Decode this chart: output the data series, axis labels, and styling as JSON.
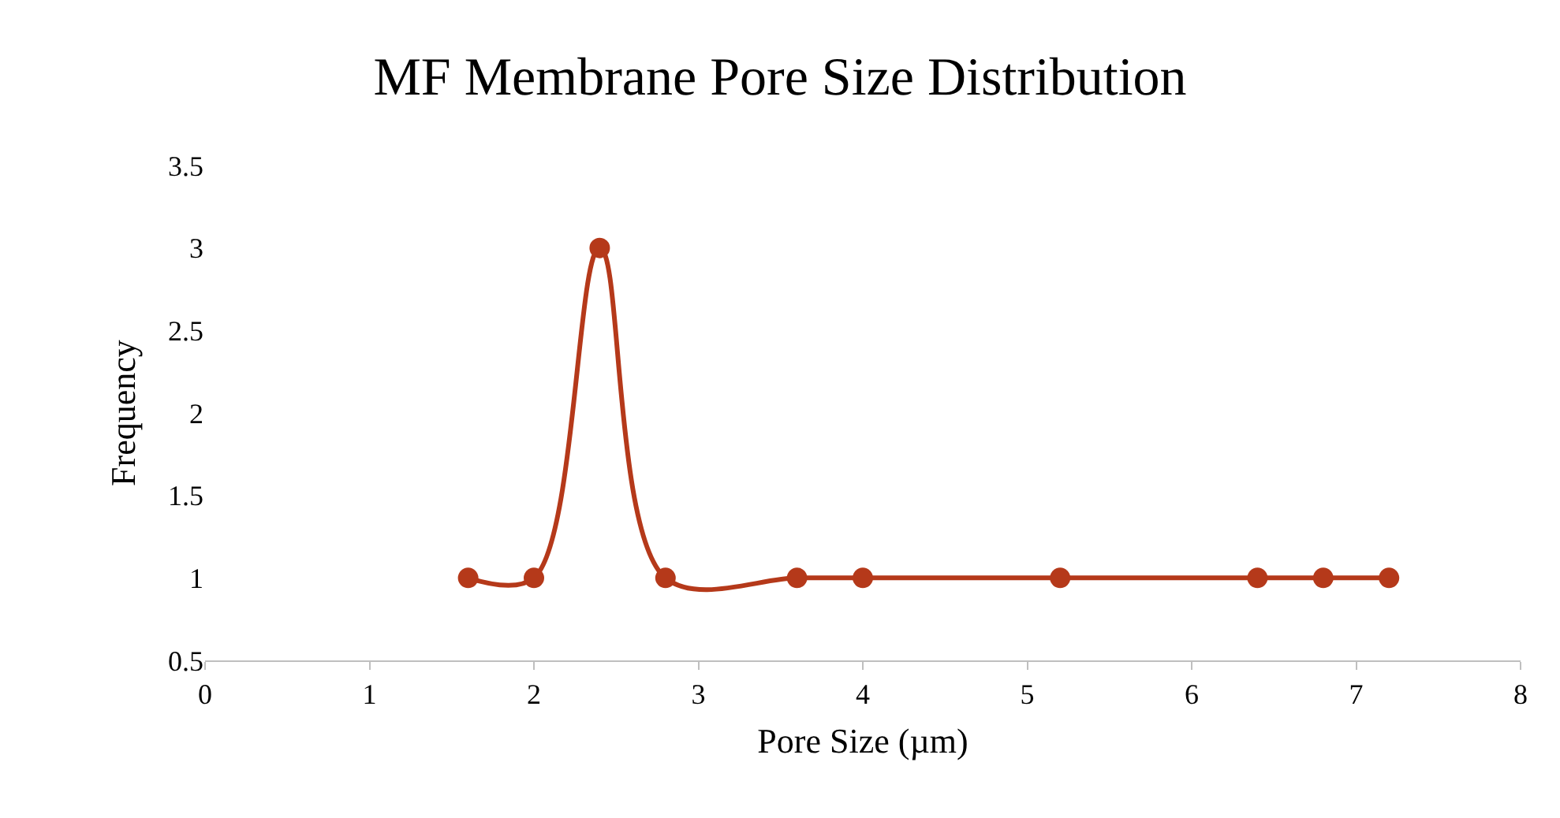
{
  "chart_data": {
    "type": "line",
    "title": "MF Membrane Pore Size Distribution",
    "xlabel": "Pore Size (µm)",
    "ylabel": "Frequency",
    "x": [
      1.6,
      2,
      2.4,
      2.8,
      3.6,
      4,
      5.2,
      6.4,
      6.8,
      7.2
    ],
    "values": [
      1,
      1,
      3,
      1,
      1,
      1,
      1,
      1,
      1,
      1
    ],
    "color": "#b5391a",
    "marker": "circle",
    "line_style": "solid",
    "xlim": [
      0,
      8
    ],
    "xticks": [
      0,
      1,
      2,
      3,
      4,
      5,
      6,
      7,
      8
    ],
    "ylim": [
      0.5,
      3.5
    ],
    "yticks": [
      0.5,
      1,
      1.5,
      2,
      2.5,
      3,
      3.5
    ]
  }
}
